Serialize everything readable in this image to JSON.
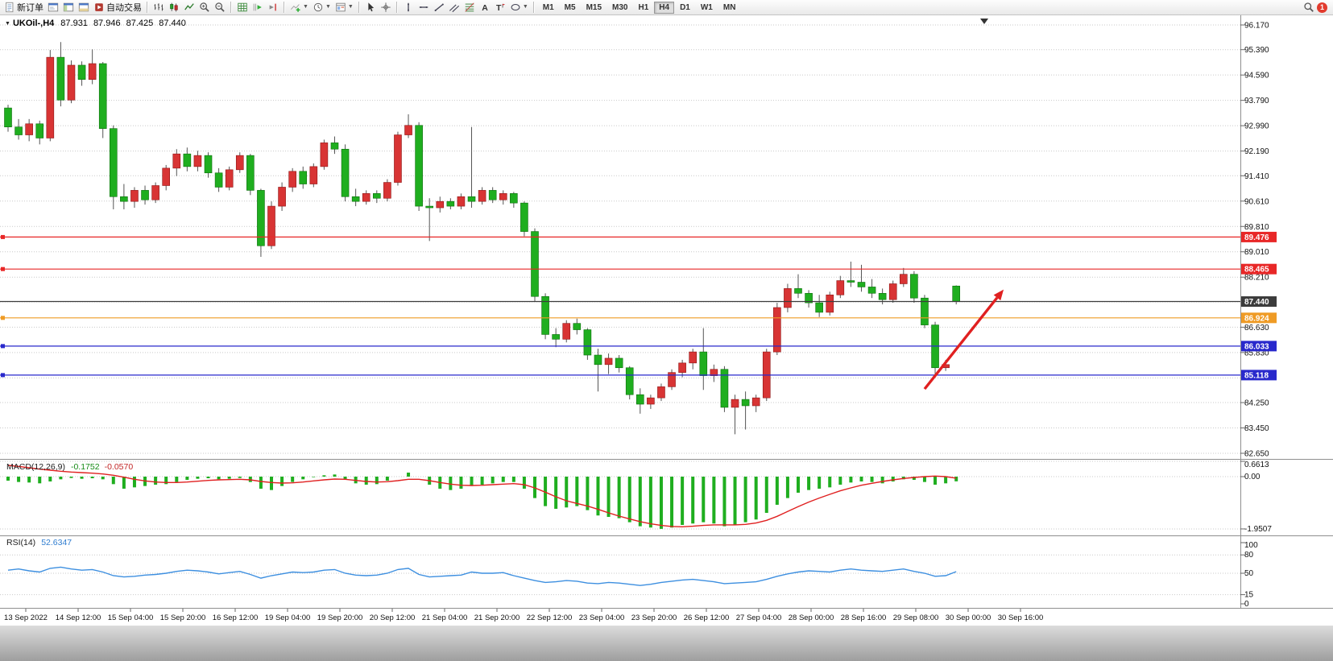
{
  "toolbar": {
    "groups": [
      {
        "items": [
          {
            "name": "new-order",
            "label": "新订单",
            "icon": "doc"
          },
          {
            "name": "market-watch",
            "icon": "win1"
          },
          {
            "name": "navigator",
            "icon": "win2"
          },
          {
            "name": "terminal",
            "icon": "win3"
          },
          {
            "name": "autotrading",
            "label": "自动交易",
            "icon": "play"
          }
        ]
      },
      {
        "items": [
          {
            "name": "chart-bars",
            "icon": "bars"
          },
          {
            "name": "chart-candles",
            "icon": "candles"
          },
          {
            "name": "chart-line",
            "icon": "linechart"
          },
          {
            "name": "zoom-in",
            "icon": "zoomin"
          },
          {
            "name": "zoom-out",
            "icon": "zoomout"
          }
        ]
      },
      {
        "items": [
          {
            "name": "tile-windows",
            "icon": "grid"
          },
          {
            "name": "auto-scroll",
            "icon": "autoscroll"
          },
          {
            "name": "chart-shift",
            "icon": "chartshift"
          }
        ]
      },
      {
        "items": [
          {
            "name": "indicators",
            "icon": "indicators",
            "dropdown": true
          },
          {
            "name": "periods",
            "icon": "clock",
            "dropdown": true
          },
          {
            "name": "templates",
            "icon": "template",
            "dropdown": true
          }
        ]
      },
      {
        "items": [
          {
            "name": "cursor",
            "icon": "cursor"
          },
          {
            "name": "crosshair",
            "icon": "crosshair"
          }
        ]
      },
      {
        "items": [
          {
            "name": "vertical-line",
            "icon": "vline"
          },
          {
            "name": "horizontal-line",
            "icon": "hline"
          },
          {
            "name": "trendline",
            "icon": "trend"
          },
          {
            "name": "equidistant-channel",
            "icon": "channel"
          },
          {
            "name": "fibonacci",
            "icon": "fibo"
          },
          {
            "name": "text",
            "icon": "textA"
          },
          {
            "name": "text-label",
            "icon": "textT"
          },
          {
            "name": "shapes",
            "icon": "shapes",
            "dropdown": true
          }
        ]
      }
    ],
    "timeframes": {
      "options": [
        "M1",
        "M5",
        "M15",
        "M30",
        "H1",
        "H4",
        "D1",
        "W1",
        "MN"
      ],
      "active": "H4"
    },
    "right": {
      "notification": "1"
    }
  },
  "chart": {
    "symbol_title": "UKOil-,H4",
    "ohlc": {
      "open": "87.931",
      "high": "87.946",
      "low": "87.425",
      "close": "87.440"
    }
  },
  "indicators": {
    "macd": {
      "label": "MACD(12,26,9)",
      "main_value": "-0.1752",
      "signal_value": "-0.0570",
      "axis": [
        "0.6613",
        "0.00",
        "-1.9507"
      ]
    },
    "rsi": {
      "label": "RSI(14)",
      "value": "52.6347",
      "axis": [
        "100",
        "80",
        "50",
        "15",
        "0"
      ]
    }
  },
  "price_axis": {
    "labels": [
      "96.170",
      "95.390",
      "94.590",
      "93.790",
      "92.990",
      "92.190",
      "91.410",
      "90.610",
      "89.810",
      "89.010",
      "88.210",
      "86.630",
      "85.830",
      "84.250",
      "83.450",
      "82.650"
    ],
    "tags": [
      {
        "text": "89.476",
        "color": "#e82727"
      },
      {
        "text": "88.465",
        "color": "#e82727"
      },
      {
        "text": "87.440",
        "color": "#3c3c3c"
      },
      {
        "text": "86.924",
        "color": "#ef9b25"
      },
      {
        "text": "86.033",
        "color": "#2929cc"
      },
      {
        "text": "85.118",
        "color": "#2929cc"
      }
    ]
  },
  "time_axis": {
    "labels": [
      "13 Sep 2022",
      "14 Sep 12:00",
      "15 Sep 04:00",
      "15 Sep 20:00",
      "16 Sep 12:00",
      "19 Sep 04:00",
      "19 Sep 20:00",
      "20 Sep 12:00",
      "21 Sep 04:00",
      "21 Sep 20:00",
      "22 Sep 12:00",
      "23 Sep 04:00",
      "23 Sep 20:00",
      "26 Sep 12:00",
      "27 Sep 04:00",
      "28 Sep 00:00",
      "28 Sep 16:00",
      "29 Sep 08:00",
      "30 Sep 00:00",
      "30 Sep 16:00"
    ]
  },
  "chart_data": {
    "type": "candlestick",
    "symbol": "UKOil",
    "timeframe": "H4",
    "title": "UKOil-,H4 87.931 87.946 87.425 87.440",
    "ylim": [
      82.65,
      96.17
    ],
    "colors": {
      "bull": "#d83434",
      "bull_border": "#8e1414",
      "bear": "#1fae1f",
      "bear_border": "#0d6e0d",
      "wick": "#555555",
      "macd_histogram": "#1fae1f",
      "macd_signal": "#e02020",
      "rsi_line": "#3d8fe0"
    },
    "grid_prices": [
      96.17,
      95.39,
      94.59,
      93.79,
      92.99,
      92.19,
      91.41,
      90.61,
      89.81,
      89.01,
      88.21,
      87.43,
      86.63,
      85.83,
      85.03,
      84.25,
      83.45,
      82.65
    ],
    "hlines": [
      {
        "price": 89.476,
        "color": "#e82727",
        "handle": true
      },
      {
        "price": 88.465,
        "color": "#e82727",
        "handle": true
      },
      {
        "price": 87.44,
        "color": "#3c3c3c",
        "handle": false
      },
      {
        "price": 86.924,
        "color": "#ef9b25",
        "handle": true
      },
      {
        "price": 86.033,
        "color": "#2929cc",
        "handle": true
      },
      {
        "price": 85.118,
        "color": "#2929cc",
        "handle": true
      }
    ],
    "annotation_arrow": {
      "color": "#e02020",
      "from": {
        "index": 87,
        "price": 84.68
      },
      "to": {
        "index": 94.5,
        "price": 87.82
      }
    },
    "candles": [
      [
        93.55,
        93.65,
        92.8,
        92.95
      ],
      [
        92.95,
        93.2,
        92.55,
        92.7
      ],
      [
        92.7,
        93.2,
        92.5,
        93.05
      ],
      [
        93.05,
        93.15,
        92.4,
        92.6
      ],
      [
        92.6,
        95.38,
        92.5,
        95.15
      ],
      [
        95.15,
        95.63,
        93.6,
        93.8
      ],
      [
        93.8,
        95.05,
        93.7,
        94.9
      ],
      [
        94.9,
        95.02,
        94.25,
        94.45
      ],
      [
        94.45,
        95.4,
        94.3,
        94.95
      ],
      [
        94.95,
        95.0,
        92.6,
        92.9
      ],
      [
        92.9,
        93.0,
        90.35,
        90.75
      ],
      [
        90.75,
        91.15,
        90.35,
        90.6
      ],
      [
        90.6,
        91.05,
        90.4,
        90.95
      ],
      [
        90.95,
        91.1,
        90.5,
        90.65
      ],
      [
        90.65,
        91.2,
        90.55,
        91.1
      ],
      [
        91.1,
        91.75,
        90.95,
        91.65
      ],
      [
        91.65,
        92.25,
        91.4,
        92.1
      ],
      [
        92.1,
        92.3,
        91.55,
        91.7
      ],
      [
        91.7,
        92.2,
        91.55,
        92.05
      ],
      [
        92.05,
        92.15,
        91.35,
        91.5
      ],
      [
        91.5,
        91.65,
        90.9,
        91.05
      ],
      [
        91.05,
        91.7,
        90.95,
        91.6
      ],
      [
        91.6,
        92.15,
        91.5,
        92.05
      ],
      [
        92.05,
        92.1,
        90.8,
        90.95
      ],
      [
        90.95,
        91.0,
        88.85,
        89.2
      ],
      [
        89.2,
        90.6,
        89.1,
        90.45
      ],
      [
        90.45,
        91.2,
        90.3,
        91.05
      ],
      [
        91.05,
        91.65,
        90.9,
        91.55
      ],
      [
        91.55,
        91.7,
        91.0,
        91.15
      ],
      [
        91.15,
        91.8,
        91.05,
        91.7
      ],
      [
        91.7,
        92.55,
        91.6,
        92.45
      ],
      [
        92.45,
        92.65,
        92.1,
        92.25
      ],
      [
        92.25,
        92.4,
        90.6,
        90.75
      ],
      [
        90.75,
        91.0,
        90.45,
        90.6
      ],
      [
        90.6,
        90.95,
        90.5,
        90.85
      ],
      [
        90.85,
        90.95,
        90.55,
        90.7
      ],
      [
        90.7,
        91.3,
        90.6,
        91.2
      ],
      [
        91.2,
        92.8,
        91.1,
        92.7
      ],
      [
        92.7,
        93.35,
        92.6,
        93.0
      ],
      [
        93.0,
        93.1,
        90.3,
        90.45
      ],
      [
        90.45,
        90.7,
        89.35,
        90.4
      ],
      [
        90.4,
        90.75,
        90.25,
        90.6
      ],
      [
        90.6,
        90.7,
        90.35,
        90.45
      ],
      [
        90.45,
        90.85,
        90.35,
        90.75
      ],
      [
        90.75,
        92.95,
        90.4,
        90.6
      ],
      [
        90.6,
        91.05,
        90.5,
        90.95
      ],
      [
        90.95,
        91.05,
        90.55,
        90.65
      ],
      [
        90.65,
        90.95,
        90.5,
        90.85
      ],
      [
        90.85,
        90.9,
        90.4,
        90.55
      ],
      [
        90.55,
        90.6,
        89.5,
        89.65
      ],
      [
        89.65,
        89.75,
        87.45,
        87.6
      ],
      [
        87.6,
        87.7,
        86.25,
        86.4
      ],
      [
        86.4,
        86.6,
        86.0,
        86.25
      ],
      [
        86.25,
        86.85,
        86.15,
        86.75
      ],
      [
        86.75,
        86.9,
        86.4,
        86.55
      ],
      [
        86.55,
        86.6,
        85.6,
        85.75
      ],
      [
        85.75,
        85.95,
        84.6,
        85.45
      ],
      [
        85.45,
        85.8,
        85.15,
        85.65
      ],
      [
        85.65,
        85.75,
        85.2,
        85.35
      ],
      [
        85.35,
        85.4,
        84.35,
        84.5
      ],
      [
        84.5,
        84.7,
        83.9,
        84.2
      ],
      [
        84.2,
        84.5,
        84.05,
        84.4
      ],
      [
        84.4,
        84.85,
        84.3,
        84.75
      ],
      [
        84.75,
        85.3,
        84.65,
        85.2
      ],
      [
        85.2,
        85.6,
        85.05,
        85.5
      ],
      [
        85.5,
        85.95,
        85.3,
        85.85
      ],
      [
        85.85,
        86.6,
        84.65,
        85.1
      ],
      [
        85.1,
        85.45,
        84.9,
        85.3
      ],
      [
        85.3,
        85.4,
        83.95,
        84.1
      ],
      [
        84.1,
        84.5,
        83.25,
        84.35
      ],
      [
        84.35,
        84.6,
        83.4,
        84.15
      ],
      [
        84.15,
        84.5,
        83.95,
        84.4
      ],
      [
        84.4,
        85.95,
        84.3,
        85.85
      ],
      [
        85.85,
        87.4,
        85.75,
        87.25
      ],
      [
        87.25,
        88.0,
        87.1,
        87.85
      ],
      [
        87.85,
        88.3,
        87.55,
        87.7
      ],
      [
        87.7,
        87.8,
        87.25,
        87.4
      ],
      [
        87.4,
        87.65,
        86.95,
        87.1
      ],
      [
        87.1,
        87.75,
        87.0,
        87.65
      ],
      [
        87.65,
        88.25,
        87.55,
        88.1
      ],
      [
        88.1,
        88.7,
        87.9,
        88.05
      ],
      [
        88.05,
        88.6,
        87.75,
        87.9
      ],
      [
        87.9,
        88.15,
        87.55,
        87.7
      ],
      [
        87.7,
        87.85,
        87.35,
        87.5
      ],
      [
        87.5,
        88.1,
        87.4,
        88.0
      ],
      [
        88.0,
        88.5,
        87.9,
        88.3
      ],
      [
        88.3,
        88.4,
        87.4,
        87.55
      ],
      [
        87.55,
        87.65,
        86.6,
        86.7
      ],
      [
        86.7,
        86.8,
        85.05,
        85.35
      ],
      [
        85.35,
        85.6,
        85.25,
        85.45
      ],
      [
        87.93,
        87.95,
        87.35,
        87.44
      ]
    ],
    "macd": {
      "range": [
        -1.9507,
        0.6613
      ],
      "histogram": [
        -0.15,
        -0.2,
        -0.22,
        -0.25,
        -0.18,
        -0.1,
        -0.05,
        -0.08,
        -0.06,
        -0.1,
        -0.28,
        -0.45,
        -0.4,
        -0.35,
        -0.3,
        -0.28,
        -0.2,
        -0.12,
        -0.08,
        -0.06,
        -0.1,
        -0.08,
        -0.05,
        -0.2,
        -0.45,
        -0.5,
        -0.35,
        -0.2,
        -0.1,
        -0.02,
        0.05,
        0.08,
        -0.1,
        -0.25,
        -0.3,
        -0.28,
        -0.15,
        0.0,
        0.15,
        0.0,
        -0.3,
        -0.45,
        -0.5,
        -0.45,
        -0.35,
        -0.3,
        -0.25,
        -0.2,
        -0.2,
        -0.45,
        -0.8,
        -1.1,
        -1.2,
        -1.15,
        -1.1,
        -1.25,
        -1.45,
        -1.5,
        -1.55,
        -1.7,
        -1.85,
        -1.9,
        -1.95,
        -1.9,
        -1.8,
        -1.75,
        -1.7,
        -1.75,
        -1.85,
        -1.8,
        -1.7,
        -1.6,
        -1.35,
        -1.05,
        -0.8,
        -0.6,
        -0.5,
        -0.45,
        -0.4,
        -0.3,
        -0.22,
        -0.18,
        -0.2,
        -0.25,
        -0.18,
        -0.1,
        -0.12,
        -0.2,
        -0.3,
        -0.25,
        -0.1752
      ],
      "signal": [
        0.42,
        0.38,
        0.33,
        0.28,
        0.24,
        0.2,
        0.17,
        0.15,
        0.13,
        0.1,
        0.05,
        -0.02,
        -0.1,
        -0.16,
        -0.2,
        -0.22,
        -0.22,
        -0.2,
        -0.17,
        -0.14,
        -0.12,
        -0.11,
        -0.1,
        -0.12,
        -0.18,
        -0.22,
        -0.24,
        -0.23,
        -0.2,
        -0.16,
        -0.12,
        -0.09,
        -0.1,
        -0.14,
        -0.18,
        -0.2,
        -0.19,
        -0.15,
        -0.1,
        -0.1,
        -0.15,
        -0.22,
        -0.28,
        -0.32,
        -0.33,
        -0.32,
        -0.3,
        -0.28,
        -0.26,
        -0.3,
        -0.42,
        -0.58,
        -0.75,
        -0.9,
        -1.0,
        -1.1,
        -1.22,
        -1.35,
        -1.47,
        -1.58,
        -1.68,
        -1.76,
        -1.82,
        -1.86,
        -1.87,
        -1.85,
        -1.82,
        -1.8,
        -1.8,
        -1.8,
        -1.78,
        -1.73,
        -1.63,
        -1.48,
        -1.3,
        -1.12,
        -0.95,
        -0.8,
        -0.66,
        -0.53,
        -0.42,
        -0.32,
        -0.25,
        -0.18,
        -0.12,
        -0.07,
        -0.03,
        0.0,
        0.02,
        0.0,
        -0.057
      ]
    },
    "rsi": {
      "range": [
        0,
        100
      ],
      "levels": [
        80,
        50,
        15
      ],
      "values": [
        55,
        57,
        54,
        52,
        58,
        60,
        57,
        55,
        56,
        52,
        46,
        44,
        45,
        47,
        48,
        50,
        53,
        55,
        54,
        52,
        49,
        51,
        53,
        48,
        42,
        46,
        49,
        52,
        51,
        52,
        55,
        56,
        50,
        47,
        46,
        47,
        50,
        56,
        58,
        48,
        44,
        45,
        46,
        47,
        52,
        50,
        50,
        51,
        46,
        42,
        38,
        35,
        36,
        38,
        37,
        34,
        33,
        35,
        34,
        32,
        30,
        32,
        35,
        37,
        39,
        40,
        38,
        36,
        33,
        34,
        35,
        36,
        40,
        45,
        49,
        52,
        54,
        53,
        52,
        55,
        57,
        55,
        54,
        53,
        55,
        57,
        53,
        50,
        45,
        46,
        52.63
      ]
    }
  }
}
